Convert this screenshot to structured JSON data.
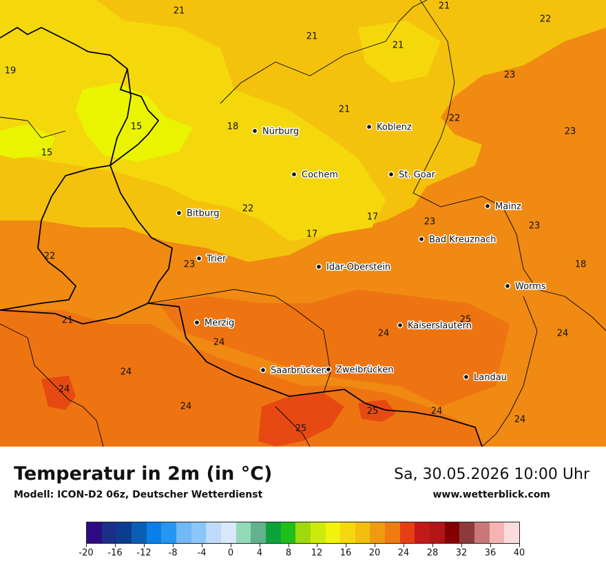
{
  "map": {
    "base_color": "#f08a12",
    "zone_colors": {
      "t14_16": "#eaf400",
      "t16_18": "#f4d80c",
      "t18_20": "#f4c20c",
      "t20_22": "#f2a60f",
      "t22_24": "#f08a12",
      "t24_26": "#ee7412",
      "t26_28": "#e64a12"
    },
    "border_color": "#000000",
    "cities": [
      {
        "name": "Nürburg"
      },
      {
        "name": "Koblenz"
      },
      {
        "name": "Cochem"
      },
      {
        "name": "St. Goar"
      },
      {
        "name": "Mainz"
      },
      {
        "name": "Bitburg"
      },
      {
        "name": "Bad Kreuznach"
      },
      {
        "name": "Trier"
      },
      {
        "name": "Idar-Oberstein"
      },
      {
        "name": "Worms"
      },
      {
        "name": "Merzig"
      },
      {
        "name": "Kaiserslautern"
      },
      {
        "name": "Saarbrücken"
      },
      {
        "name": "Zweibrücken"
      },
      {
        "name": "Landau"
      }
    ],
    "temperature_labels": [
      "21",
      "21",
      "21",
      "21",
      "22",
      "19",
      "23",
      "21",
      "22",
      "15",
      "18",
      "15",
      "23",
      "22",
      "17",
      "23",
      "23",
      "17",
      "22",
      "23",
      "18",
      "21",
      "25",
      "24",
      "24",
      "24",
      "24",
      "24",
      "24",
      "25",
      "24",
      "25",
      "24"
    ]
  },
  "footer": {
    "title": "Temperatur in 2m (in °C)",
    "model": "Modell: ICON-D2 06z, Deutscher Wetterdienst",
    "date": "Sa, 30.05.2026 10:00 Uhr",
    "site": "www.wetterblick.com"
  },
  "legend": {
    "min": -20,
    "max": 40,
    "tick_labels": [
      "-20",
      "-16",
      "-12",
      "-8",
      "-4",
      "0",
      "4",
      "8",
      "12",
      "16",
      "20",
      "24",
      "28",
      "32",
      "36",
      "40"
    ],
    "colors": [
      "#2e0a84",
      "#1a2e8a",
      "#0a3d8f",
      "#0a5fb4",
      "#0a80e6",
      "#2796f0",
      "#70b8f6",
      "#8cc6f8",
      "#bfdbfa",
      "#d8e8fb",
      "#93d9b8",
      "#62b28d",
      "#0ea33a",
      "#1fbf1a",
      "#9fd80c",
      "#cdeb0a",
      "#f2f20a",
      "#f4d80c",
      "#f4be0c",
      "#f09a12",
      "#ee7c12",
      "#e64012",
      "#c21a1a",
      "#b01616",
      "#840000",
      "#8e3a3a",
      "#c87878",
      "#f5b4b4",
      "#fadcdc"
    ]
  }
}
